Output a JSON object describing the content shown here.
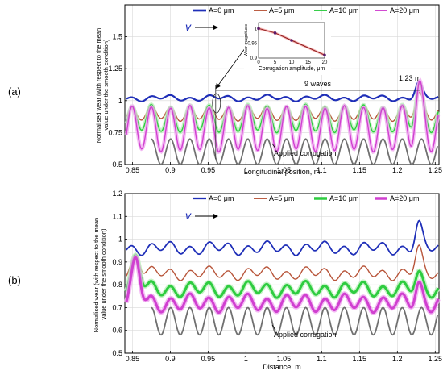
{
  "colors": {
    "A0": "#1f2fb8",
    "A5": "#b8553a",
    "A10": "#2ecc40",
    "A10_light": "#b8f0b8",
    "A20": "#d040d0",
    "A20_light": "#f0a8f0",
    "corrugation": "#707070",
    "axis": "#000000",
    "grid": "#d9d9d9",
    "marker": "#8b1a1a"
  },
  "chart_data": [
    {
      "type": "line",
      "panel_label": "(a)",
      "xlabel": "Longitudinal position, m",
      "ylabel": "Normalised wear (with respect to the mean value under the smooth condition)",
      "xlim": [
        0.84,
        1.255
      ],
      "ylim": [
        0.5,
        1.75
      ],
      "xticks": [
        "0.85",
        "0.9",
        "0.95",
        "1",
        "1.05",
        "1.1",
        "1.15",
        "1.2",
        "1.25"
      ],
      "xtick_values": [
        0.85,
        0.9,
        0.95,
        1.0,
        1.05,
        1.1,
        1.15,
        1.2,
        1.25
      ],
      "yticks": [
        "0.5",
        "0.75",
        "1",
        "1.25",
        "1.5"
      ],
      "ytick_values": [
        0.5,
        0.75,
        1.0,
        1.25,
        1.5
      ],
      "grid": true,
      "legend_position": "top",
      "legend": [
        "A=0 μm",
        "A=5 μm",
        "A=10 μm",
        "A=20 μm"
      ],
      "series": [
        {
          "name": "A=0 μm",
          "mean": 1.02,
          "amplitude": 0.015,
          "baseline_x0": 0.84
        },
        {
          "name": "A=5 μm",
          "mean": 0.9,
          "amplitude": 0.05
        },
        {
          "name": "A=10 μm",
          "mean": 0.86,
          "amplitude": 0.1
        },
        {
          "name": "A=20 μm",
          "mean": 0.78,
          "amplitude": 0.17
        }
      ],
      "applied_corrugation": {
        "x_start": 0.875,
        "mean": 0.6,
        "amplitude": 0.1,
        "wavelength": 0.0255
      },
      "annotations": {
        "velocity": "v",
        "waves": "9 waves",
        "peak_label": "1.23 m",
        "corrugation_label": "Applied corrugation",
        "vline_left": 0.96,
        "vline_right": 1.23
      },
      "inset": {
        "type": "line",
        "xlabel": "Corrugation amplitude, μm",
        "ylabel": "Wear magnitude",
        "x": [
          0,
          5,
          10,
          20
        ],
        "y": [
          1.0,
          0.985,
          0.96,
          0.91
        ],
        "xticks": [
          "0",
          "5",
          "10",
          "15",
          "20"
        ],
        "yticks": [
          "0.9",
          "0.95",
          "1"
        ],
        "xlim": [
          0,
          20
        ],
        "ylim": [
          0.9,
          1.02
        ]
      }
    },
    {
      "type": "line",
      "panel_label": "(b)",
      "xlabel": "Distance, m",
      "ylabel": "Normalised wear (with respect to the mean value under the smooth condition)",
      "xlim": [
        0.84,
        1.255
      ],
      "ylim": [
        0.5,
        1.2
      ],
      "xticks": [
        "0.85",
        "0.9",
        "0.95",
        "1",
        "1.05",
        "1.1",
        "1.15",
        "1.2",
        "1.25"
      ],
      "xtick_values": [
        0.85,
        0.9,
        0.95,
        1.0,
        1.05,
        1.1,
        1.15,
        1.2,
        1.25
      ],
      "yticks": [
        "0.5",
        "0.6",
        "0.7",
        "0.8",
        "0.9",
        "1",
        "1.1",
        "1.2"
      ],
      "ytick_values": [
        0.5,
        0.6,
        0.7,
        0.8,
        0.9,
        1.0,
        1.1,
        1.2
      ],
      "grid": true,
      "legend_position": "top",
      "legend": [
        "A=0 μm",
        "A=5 μm",
        "A=10 μm",
        "A=20 μm"
      ],
      "series": [
        {
          "name": "A=0 μm",
          "mean": 0.96,
          "amplitude": 0.02
        },
        {
          "name": "A=5 μm",
          "mean": 0.85,
          "amplitude": 0.02
        },
        {
          "name": "A=10 μm",
          "mean": 0.78,
          "amplitude": 0.025
        },
        {
          "name": "A=20 μm",
          "mean": 0.72,
          "amplitude": 0.03
        }
      ],
      "applied_corrugation": {
        "x_start": 0.875,
        "mean": 0.64,
        "amplitude": 0.06,
        "wavelength": 0.0255
      },
      "annotations": {
        "velocity": "v",
        "corrugation_label": "Applied corrugation"
      }
    }
  ]
}
